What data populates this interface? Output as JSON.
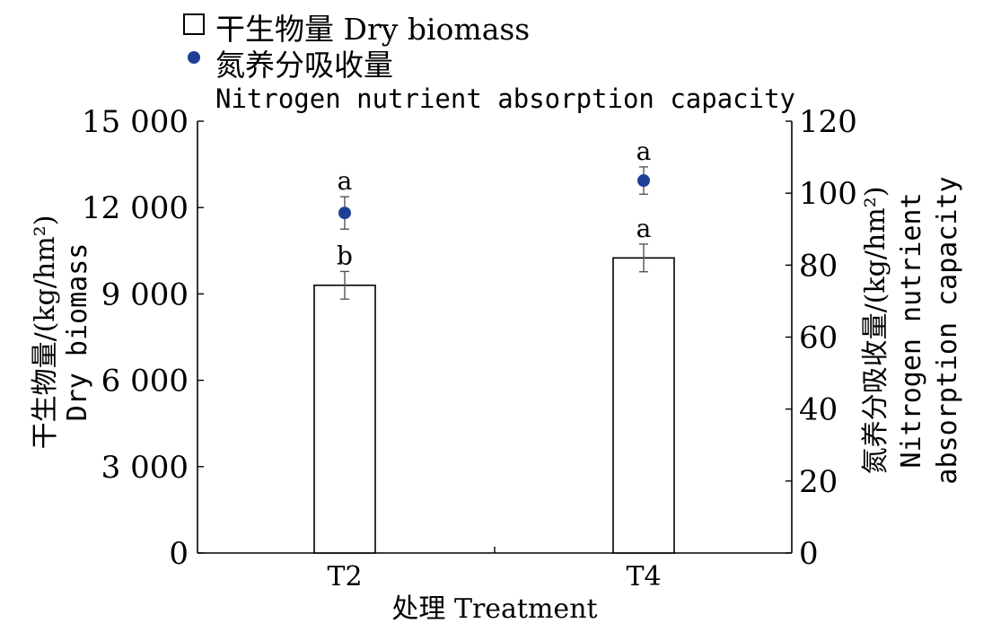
{
  "chart_data": {
    "type": "bar",
    "categories": [
      "T2",
      "T4"
    ],
    "xlabel": "处理 Treatment",
    "ylabel_left": [
      "干生物量/(kg/hm²)",
      "Dry biomass"
    ],
    "ylabel_right": [
      "氮养分吸收量/(kg/hm²)",
      "Nitrogen nutrient",
      "absorption capacity"
    ],
    "ylim_left": [
      0,
      15000
    ],
    "ylim_right": [
      0,
      120
    ],
    "yticks_left": [
      "0",
      "3 000",
      "6 000",
      "9 000",
      "12 000",
      "15 000"
    ],
    "yticks_right": [
      "0",
      "20",
      "40",
      "60",
      "80",
      "100",
      "120"
    ],
    "legend": {
      "placement": "top-left",
      "items": [
        {
          "marker": "open-square",
          "label": "干生物量 Dry biomass"
        },
        {
          "marker": "filled-circle",
          "label": "氮养分吸收量",
          "sublabel": "Nitrogen nutrient absorption capacity"
        }
      ]
    },
    "series": [
      {
        "name": "干生物量 Dry biomass",
        "kind": "bar",
        "axis": "left",
        "values": [
          9300,
          10250
        ],
        "error": [
          480,
          480
        ],
        "significance": [
          "b",
          "a"
        ]
      },
      {
        "name": "氮养分吸收量 Nitrogen nutrient absorption capacity",
        "kind": "point",
        "axis": "right",
        "values": [
          94.5,
          103.5
        ],
        "error": [
          4.5,
          3.8
        ],
        "significance": [
          "a",
          "a"
        ]
      }
    ],
    "colors": {
      "bar_fill": "#ffffff",
      "bar_stroke": "#000000",
      "point": "#1f3f95",
      "errorbar": "#555555"
    }
  }
}
